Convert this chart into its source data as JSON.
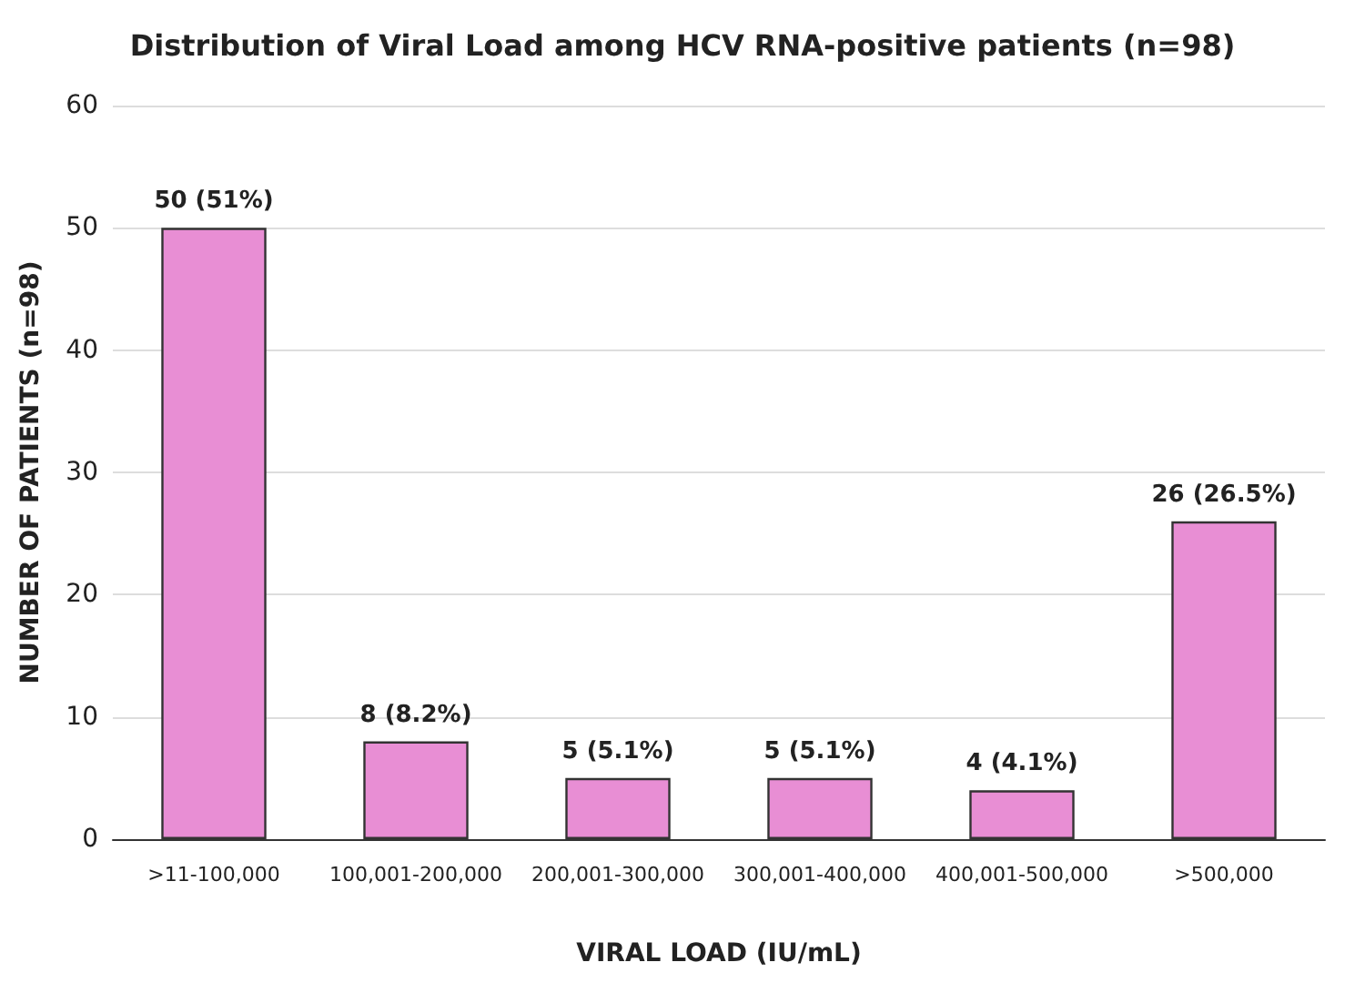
{
  "chart_data": {
    "type": "bar",
    "title": "Distribution of Viral Load among HCV RNA-positive patients (n=98)",
    "xlabel": "VIRAL LOAD (IU/mL)",
    "ylabel": "NUMBER OF PATIENTS (n=98)",
    "categories": [
      ">11-100,000",
      "100,001-200,000",
      "200,001-300,000",
      "300,001-400,000",
      "400,001-500,000",
      ">500,000"
    ],
    "values": [
      50,
      8,
      5,
      5,
      4,
      26
    ],
    "value_labels": [
      "50 (51%)",
      "8 (8.2%)",
      "5 (5.1%)",
      "5 (5.1%)",
      "4 (4.1%)",
      "26 (26.5%)"
    ],
    "color": "#e88ed4",
    "ylim": [
      0,
      60
    ],
    "yticks": [
      0,
      10,
      20,
      30,
      40,
      50,
      60
    ],
    "grid": "y"
  }
}
